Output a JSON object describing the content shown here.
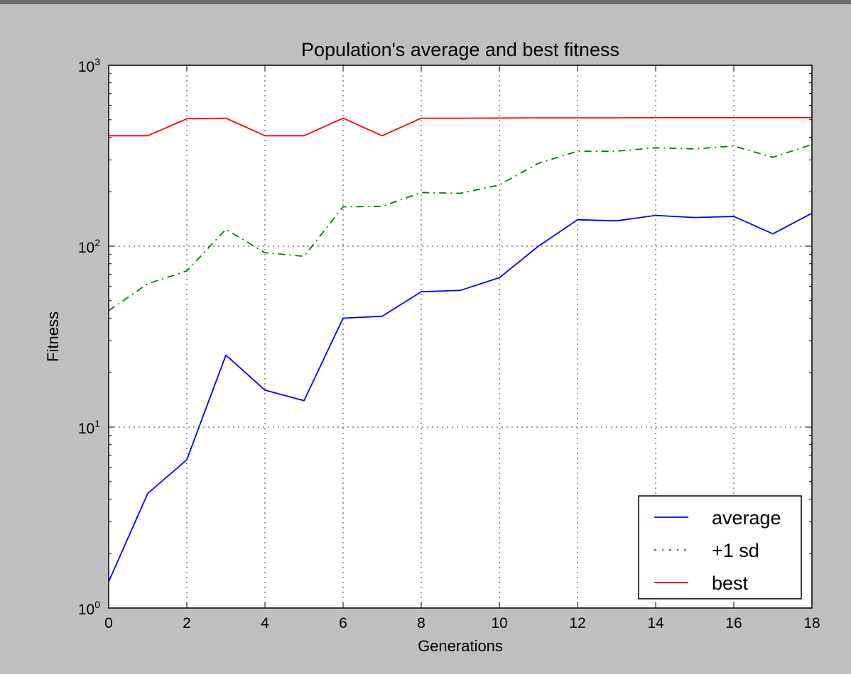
{
  "chart_data": {
    "type": "line",
    "title": "Population's average and best fitness",
    "xlabel": "Generations",
    "ylabel": "Fitness",
    "xlim": [
      0,
      18
    ],
    "ylim": [
      1,
      1000
    ],
    "yscale": "log",
    "grid": true,
    "legend_position": "bottom-right",
    "x": [
      0,
      1,
      2,
      3,
      4,
      5,
      6,
      7,
      8,
      9,
      10,
      11,
      12,
      13,
      14,
      15,
      16,
      17,
      18
    ],
    "x_ticks": [
      0,
      2,
      4,
      6,
      8,
      10,
      12,
      14,
      16,
      18
    ],
    "x_tick_labels": [
      "0",
      "2",
      "4",
      "6",
      "8",
      "10",
      "12",
      "14",
      "16",
      "18"
    ],
    "y_ticks": [
      {
        "value": 1,
        "base": "10",
        "exp": "0"
      },
      {
        "value": 10,
        "base": "10",
        "exp": "1"
      },
      {
        "value": 100,
        "base": "10",
        "exp": "2"
      },
      {
        "value": 1000,
        "base": "10",
        "exp": "3"
      }
    ],
    "series": [
      {
        "name": "average",
        "color": "#0000ff",
        "style": "solid",
        "values": [
          1.4,
          4.3,
          6.6,
          25,
          16,
          14,
          40,
          41,
          56,
          57,
          67,
          100,
          140,
          138,
          148,
          144,
          146,
          117,
          152
        ]
      },
      {
        "name": "+1 sd",
        "color": "#008000",
        "style": "dashdot",
        "values": [
          44,
          62,
          73,
          124,
          92,
          88,
          165,
          166,
          198,
          196,
          218,
          287,
          335,
          335,
          350,
          345,
          358,
          310,
          365
        ]
      },
      {
        "name": "best",
        "color": "#ff0000",
        "style": "solid",
        "values": [
          408,
          408,
          506,
          510,
          408,
          408,
          510,
          408,
          510,
          510,
          511,
          512,
          512,
          512,
          513,
          513,
          513,
          513,
          514
        ]
      }
    ]
  }
}
